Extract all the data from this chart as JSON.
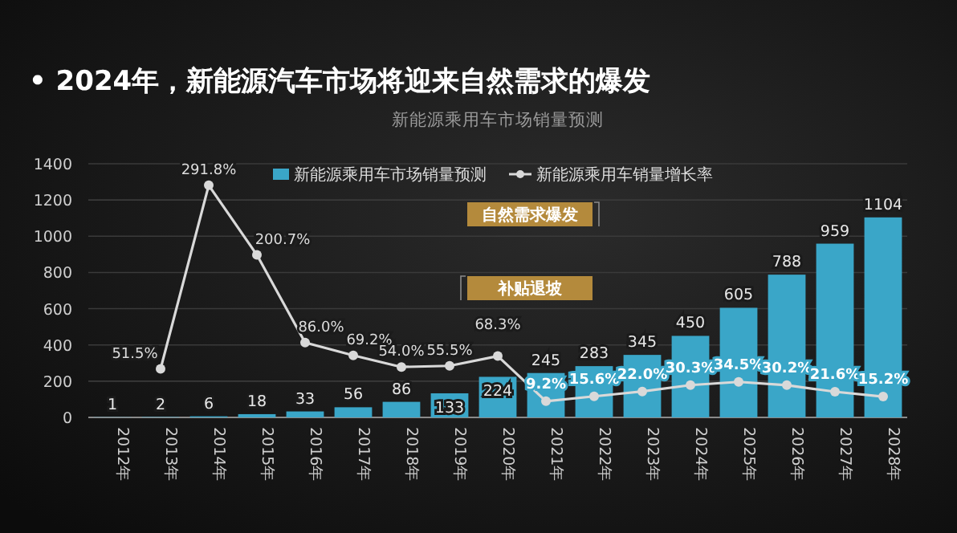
{
  "chart_data": {
    "type": "bar",
    "title": "• 2024年，新能源汽车市场将迎来自然需求的爆发",
    "subtitle": "新能源乘用车市场销量预测",
    "categories": [
      "2012年",
      "2013年",
      "2014年",
      "2015年",
      "2016年",
      "2017年",
      "2018年",
      "2019年",
      "2020年",
      "2021年",
      "2022年",
      "2023年",
      "2024年",
      "2025年",
      "2026年",
      "2027年",
      "2028年"
    ],
    "series": [
      {
        "name": "新能源乘用车市场销量预测",
        "color": "#3aa6c8",
        "values": [
          1,
          2,
          6,
          18,
          33,
          56,
          86,
          133,
          224,
          245,
          283,
          345,
          450,
          605,
          788,
          959,
          1104
        ],
        "value_labels": [
          "1",
          "2",
          "6",
          "18",
          "33",
          "56",
          "86",
          "133",
          "224",
          "245",
          "283",
          "345",
          "450",
          "605",
          "788",
          "959",
          "1104"
        ]
      },
      {
        "name": "新能源乘用车销量增长率",
        "type": "line",
        "axis": "y2",
        "color": "#d9d9d9",
        "marker": "circle",
        "values": [
          null,
          51.5,
          291.8,
          200.7,
          86.0,
          69.2,
          54.0,
          55.5,
          68.3,
          9.2,
          15.6,
          22.0,
          30.3,
          34.5,
          30.2,
          21.6,
          15.2
        ],
        "value_labels": [
          null,
          "51.5%",
          "291.8%",
          "200.7%",
          "86.0%",
          "69.2%",
          "54.0%",
          "55.5%",
          "68.3%",
          "9.2%",
          "15.6%",
          "22.0%",
          "30.3%",
          "34.5%",
          "30.2%",
          "21.6%",
          "15.2%"
        ]
      }
    ],
    "ylim": [
      0,
      1400
    ],
    "yticks": [
      0,
      200,
      400,
      600,
      800,
      1000,
      1200,
      1400
    ],
    "y2lim": [
      -12,
      320
    ],
    "grid": "y",
    "legend": "top",
    "annotations": [
      "自然需求爆发",
      "补贴退坡"
    ]
  }
}
